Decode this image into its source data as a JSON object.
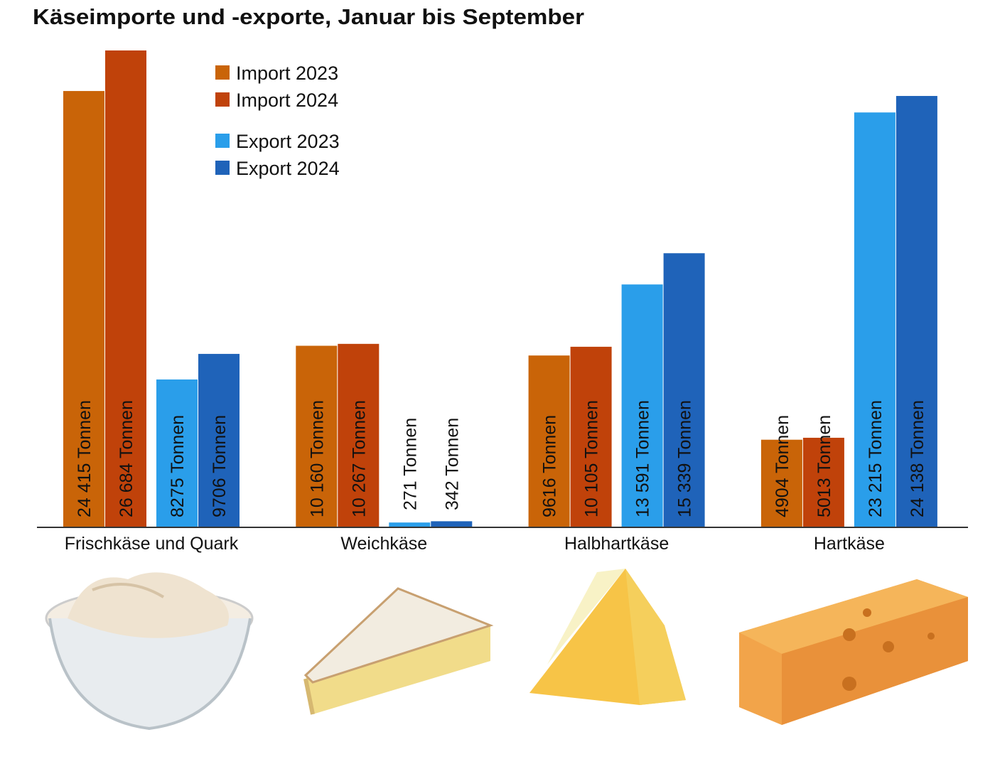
{
  "chart_data": {
    "type": "bar",
    "title": "Käseimporte und -exporte, Januar bis September",
    "categories": [
      "Frischkäse und Quark",
      "Weichkäse",
      "Halbhartkäse",
      "Hartkäse"
    ],
    "unit": "Tonnen",
    "series": [
      {
        "name": "Import 2023",
        "color": "#c96408",
        "values": [
          24415,
          10160,
          9616,
          4904
        ],
        "labels": [
          "24 415 Tonnen",
          "10 160 Tonnen",
          "9616 Tonnen",
          "4904 Tonnen"
        ]
      },
      {
        "name": "Import 2024",
        "color": "#c0420a",
        "values": [
          26684,
          10267,
          10105,
          5013
        ],
        "labels": [
          "26 684 Tonnen",
          "10 267 Tonnen",
          "10 105 Tonnen",
          "5013 Tonnen"
        ]
      },
      {
        "name": "Export 2023",
        "color": "#2a9eea",
        "values": [
          8275,
          271,
          13591,
          23215
        ],
        "labels": [
          "8275 Tonnen",
          "271 Tonnen",
          "13 591 Tonnen",
          "23 215 Tonnen"
        ]
      },
      {
        "name": "Export 2024",
        "color": "#1f63b9",
        "values": [
          9706,
          342,
          15339,
          24138
        ],
        "labels": [
          "9706 Tonnen",
          "342 Tonnen",
          "15 339 Tonnen",
          "24 138 Tonnen"
        ]
      }
    ],
    "ylim": [
      0,
      26684
    ],
    "grid": false,
    "legend_position": "top-left",
    "value_labels": "vertical, inside bars",
    "images": [
      "cream-cheese-bowl",
      "soft-cheese-wedge",
      "semi-hard-cheese-wedge",
      "hard-cheese-block"
    ]
  }
}
